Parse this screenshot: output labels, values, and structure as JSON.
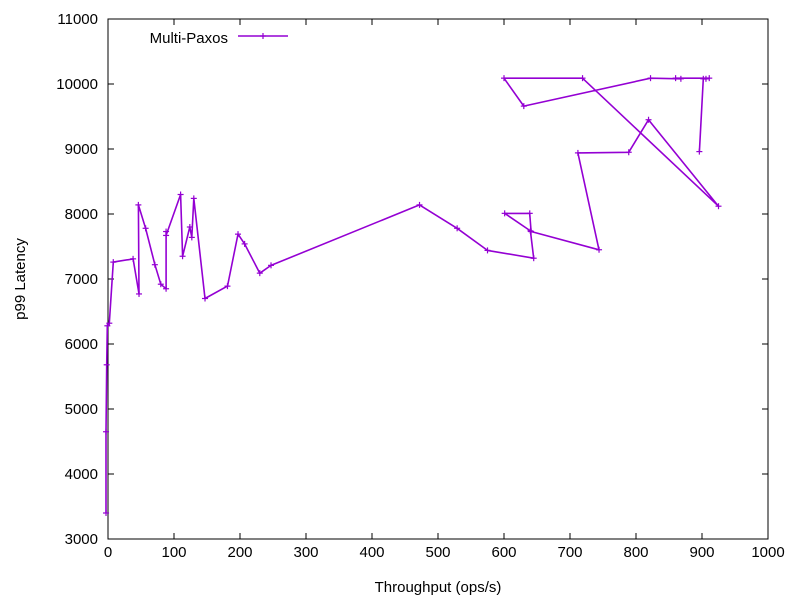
{
  "chart_data": {
    "type": "line",
    "title": "",
    "xlabel": "Throughput (ops/s)",
    "ylabel": "p99 Latency",
    "xlim": [
      0,
      1000
    ],
    "ylim": [
      3000,
      11000
    ],
    "xticks": [
      "0",
      "100",
      "200",
      "300",
      "400",
      "500",
      "600",
      "700",
      "800",
      "900",
      "1000"
    ],
    "yticks": [
      "3000",
      "4000",
      "5000",
      "6000",
      "7000",
      "8000",
      "9000",
      "10000",
      "11000"
    ],
    "grid": false,
    "legend_position": "top-left",
    "series": [
      {
        "name": "Multi-Paxos",
        "color": "#9400d3",
        "marker": "plus",
        "x": [
          -3,
          -3,
          -2,
          -1,
          2,
          8,
          38,
          47,
          46,
          57,
          71,
          80,
          88,
          88,
          88,
          110,
          113,
          124,
          127,
          130,
          147,
          181,
          197,
          207,
          230,
          247,
          472,
          529,
          575,
          645,
          640,
          601,
          639,
          641,
          744,
          712,
          789,
          819,
          925,
          719,
          600,
          630,
          822,
          868,
          860,
          911,
          906,
          902,
          896
        ],
        "y": [
          3400,
          4650,
          5680,
          6280,
          6320,
          7260,
          7310,
          6770,
          8140,
          7780,
          7220,
          6920,
          6850,
          7730,
          7670,
          8300,
          7350,
          7800,
          7640,
          8240,
          6700,
          6890,
          7690,
          7540,
          7090,
          7210,
          8140,
          7780,
          7440,
          7320,
          7740,
          8010,
          8010,
          7730,
          7450,
          8940,
          8950,
          9450,
          8120,
          10090,
          10090,
          9660,
          10090,
          10080,
          10090,
          10090,
          10080,
          10080,
          8960
        ]
      }
    ]
  }
}
